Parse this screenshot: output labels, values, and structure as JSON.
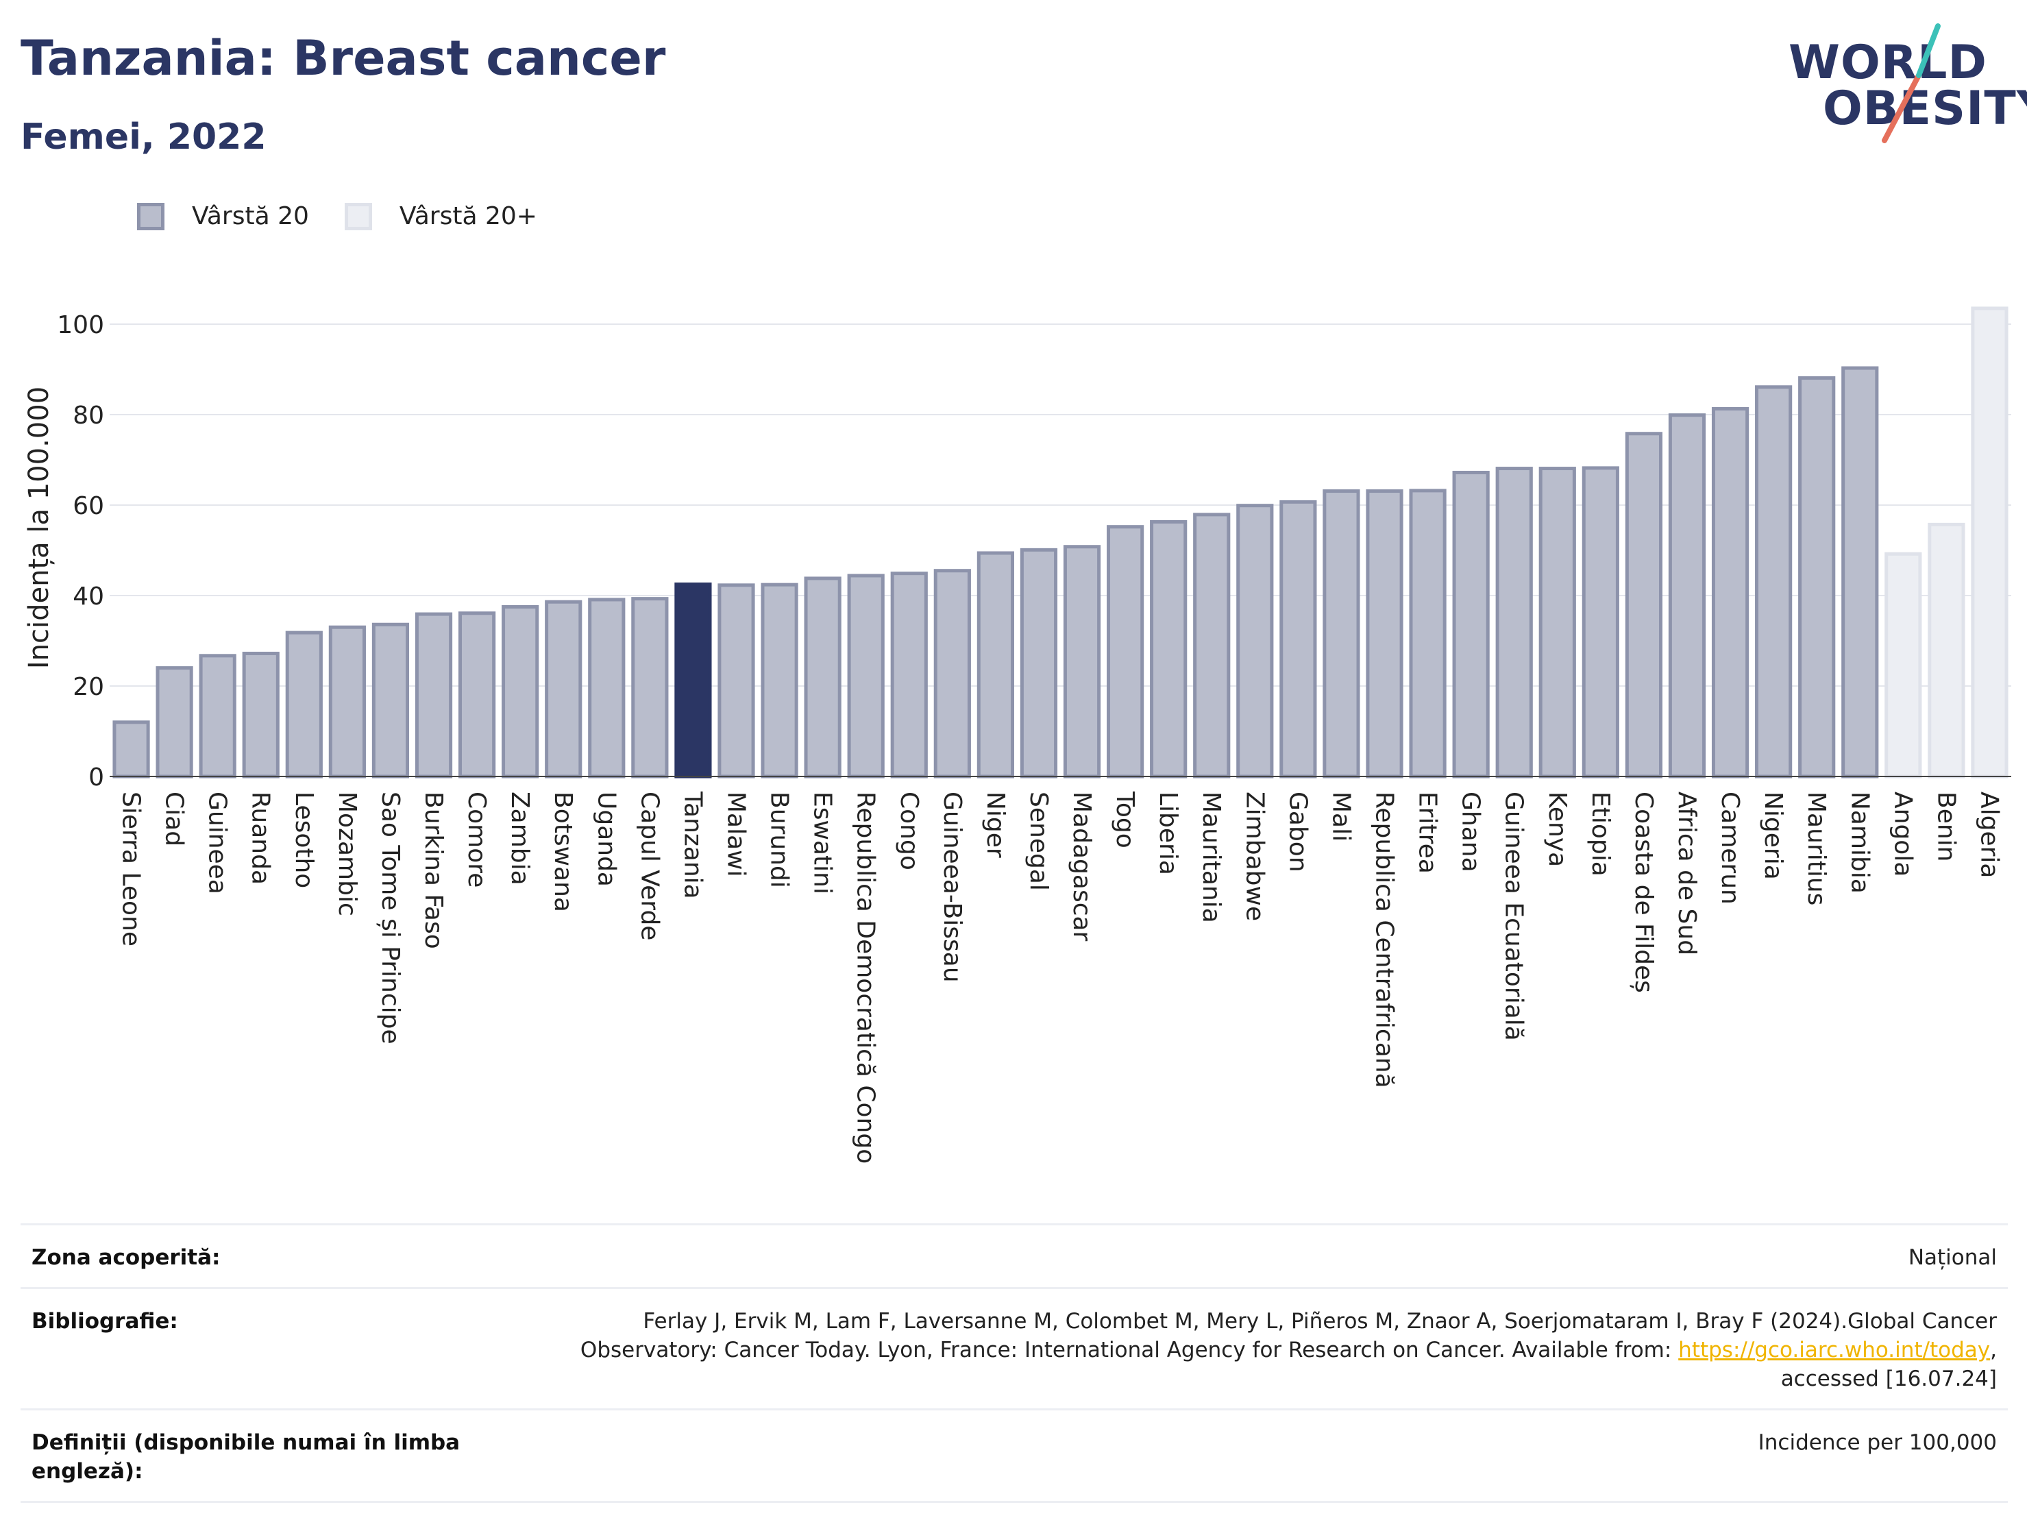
{
  "header": {
    "title": "Tanzania: Breast cancer",
    "subtitle": "Femei, 2022"
  },
  "logo": {
    "line1": "WORLD",
    "line2": "OBESITY"
  },
  "legend": [
    {
      "label": "Vârstă 20",
      "color": "#b9bdcc",
      "border": "#8d93ab"
    },
    {
      "label": "Vârstă 20+",
      "color": "#eceef3",
      "border": "#dfe2ea"
    }
  ],
  "chart_data": {
    "type": "bar",
    "ylabel": "Incidența la 100.000",
    "ylim": [
      0,
      110
    ],
    "yticks": [
      0,
      20,
      40,
      60,
      80,
      100
    ],
    "grid": true,
    "highlight": "Tanzania",
    "highlight_color": "#2b3664",
    "categories": [
      "Sierra Leone",
      "Ciad",
      "Guineea",
      "Ruanda",
      "Lesotho",
      "Mozambic",
      "Sao Tome și Principe",
      "Burkina Faso",
      "Comore",
      "Zambia",
      "Botswana",
      "Uganda",
      "Capul Verde",
      "Tanzania",
      "Malawi",
      "Burundi",
      "Eswatini",
      "Republica Democratică Congo",
      "Congo",
      "Guineea-Bissau",
      "Niger",
      "Senegal",
      "Madagascar",
      "Togo",
      "Liberia",
      "Mauritania",
      "Zimbabwe",
      "Gabon",
      "Mali",
      "Republica Centrafricană",
      "Eritrea",
      "Ghana",
      "Guineea Ecuatorială",
      "Kenya",
      "Etiopia",
      "Coasta de Fildeș",
      "Africa de Sud",
      "Camerun",
      "Nigeria",
      "Mauritius",
      "Namibia",
      "Angola",
      "Benin",
      "Algeria"
    ],
    "values": [
      12.0,
      24.0,
      26.7,
      27.2,
      31.8,
      33.0,
      33.6,
      35.9,
      36.1,
      37.5,
      38.6,
      39.1,
      39.3,
      42.5,
      42.3,
      42.4,
      43.8,
      44.4,
      44.9,
      45.5,
      49.4,
      50.1,
      50.8,
      55.2,
      56.3,
      57.9,
      59.9,
      60.7,
      63.1,
      63.1,
      63.2,
      67.2,
      68.1,
      68.1,
      68.2,
      75.8,
      79.9,
      81.3,
      86.1,
      88.1,
      90.3,
      49.2,
      55.7,
      103.5
    ],
    "series_group": [
      "20",
      "20",
      "20",
      "20",
      "20",
      "20",
      "20",
      "20",
      "20",
      "20",
      "20",
      "20",
      "20",
      "20",
      "20",
      "20",
      "20",
      "20",
      "20",
      "20",
      "20",
      "20",
      "20",
      "20",
      "20",
      "20",
      "20",
      "20",
      "20",
      "20",
      "20",
      "20",
      "20",
      "20",
      "20",
      "20",
      "20",
      "20",
      "20",
      "20",
      "20",
      "20+",
      "20+",
      "20+"
    ]
  },
  "footer": {
    "rows": [
      {
        "label": "Zona acoperită:",
        "value": "Național"
      },
      {
        "label": "Bibliografie:",
        "value_a": "Ferlay J, Ervik M, Lam F, Laversanne M, Colombet M, Mery L, Piñeros M, Znaor A, Soerjomataram I, Bray F (2024).Global Cancer Observatory: Cancer Today. Lyon, France: International Agency for Research on Cancer. Available from: ",
        "link": "https://gco.iarc.who.int/today",
        "value_b": ", accessed [16.07.24]"
      },
      {
        "label": "Definiții (disponibile numai în limba engleză):",
        "value": "Incidence per 100,000"
      }
    ]
  }
}
